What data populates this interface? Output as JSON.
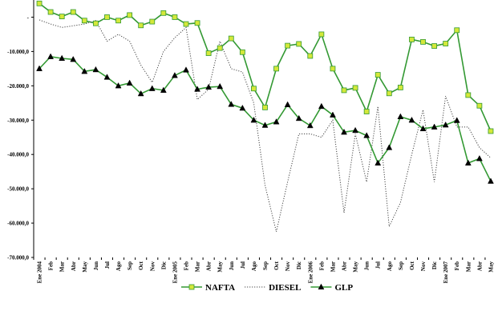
{
  "chart_data": {
    "type": "line",
    "title": "",
    "xlabel": "",
    "ylabel": "",
    "ylim": [
      -70000,
      5000
    ],
    "yticks": [
      0,
      -10000,
      -20000,
      -30000,
      -40000,
      -50000,
      -60000,
      -70000
    ],
    "ytick_labels": [
      "-",
      "-10.000,0",
      "-20.000,0",
      "-30.000,0",
      "-40.000,0",
      "-50.000,0",
      "-60.000,0",
      "-70.000,0"
    ],
    "grid": false,
    "legend": "bottom-center",
    "categories": [
      "Ene 2004",
      "Feb",
      "Mar",
      "Abr",
      "May",
      "Jun",
      "Jul",
      "Ago",
      "Sep",
      "Oct",
      "Nov",
      "Dic",
      "Ene 2005",
      "Feb",
      "Mar",
      "Abr",
      "May",
      "Jun",
      "Jul",
      "Ago",
      "Sep",
      "Oct",
      "Nov",
      "Dic",
      "Ene 2006",
      "Feb",
      "Mar",
      "Abr",
      "May",
      "Jun",
      "Jul",
      "Ago",
      "Sep",
      "Oct",
      "Nov",
      "Dic",
      "Ene 2007",
      "Feb",
      "Mar",
      "Abr",
      "May"
    ],
    "series": [
      {
        "name": "NAFTA",
        "color": "#339933",
        "marker": "square",
        "marker_fill": "#d4e83a",
        "values": [
          4000,
          1500,
          200,
          1500,
          -1000,
          -1800,
          0,
          -1000,
          600,
          -2400,
          -1300,
          1200,
          0,
          -2000,
          -1700,
          -10500,
          -9000,
          -6200,
          -10200,
          -20800,
          -26300,
          -15000,
          -8300,
          -7800,
          -11300,
          -5000,
          -15000,
          -21300,
          -20600,
          -27500,
          -16800,
          -22200,
          -20500,
          -6500,
          -7200,
          -8400,
          -7700,
          -3800,
          -22700,
          -25800,
          -33200
        ]
      },
      {
        "name": "DIESEL",
        "color": "#444444",
        "marker": "none",
        "line_style": "dotted",
        "values": [
          -800,
          -2000,
          -3000,
          -2500,
          -2000,
          -1000,
          -7000,
          -5000,
          -7000,
          -14000,
          -19000,
          -10000,
          -6000,
          -3000,
          -24000,
          -21000,
          -7000,
          -15000,
          -16000,
          -25000,
          -49000,
          -62500,
          -48000,
          -34000,
          -34000,
          -35000,
          -30000,
          -57000,
          -34000,
          -48000,
          -26000,
          -61000,
          -54000,
          -40000,
          -27000,
          -48000,
          -23000,
          -32000,
          -32000,
          -38000,
          -41000
        ]
      },
      {
        "name": "GLP",
        "color": "#339933",
        "marker": "triangle",
        "marker_fill": "#000000",
        "values": [
          -15000,
          -11500,
          -12000,
          -12300,
          -15800,
          -15300,
          -17500,
          -20000,
          -19200,
          -22300,
          -20800,
          -21300,
          -17000,
          -15400,
          -21000,
          -20400,
          -20200,
          -25400,
          -26500,
          -30000,
          -31500,
          -30500,
          -25500,
          -29500,
          -31600,
          -26000,
          -28500,
          -33500,
          -33000,
          -34500,
          -42500,
          -38000,
          -29000,
          -30000,
          -32500,
          -32000,
          -31400,
          -30100,
          -42500,
          -41200,
          -47800
        ]
      }
    ]
  }
}
